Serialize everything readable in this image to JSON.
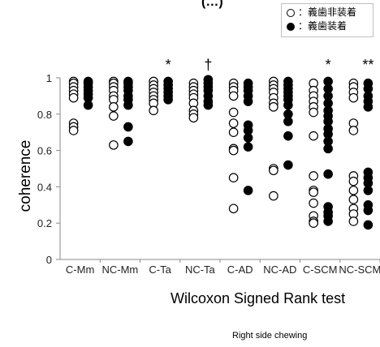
{
  "header_partial": "(…)",
  "legend": {
    "removed_label": "：義歯非装着",
    "worn_label": "：義歯装着"
  },
  "x_title": "Wilcoxon Signed Rank test",
  "footer": "Right side chewing",
  "chart_data": {
    "type": "scatter",
    "ylabel": "coherence",
    "xlabel": "Wilcoxon Signed Rank test",
    "ylim": [
      0,
      1
    ],
    "yticks": [
      0,
      0.2,
      0.4,
      0.6,
      0.8,
      1
    ],
    "categories": [
      "C-Mm",
      "NC-Mm",
      "C-Ta",
      "NC-Ta",
      "C-AD",
      "NC-AD",
      "C-SCM",
      "NC-SCM"
    ],
    "significance": [
      "",
      "",
      "*",
      "†",
      "",
      "",
      "*",
      "**"
    ],
    "series": [
      {
        "name": "義歯非装着",
        "marker": "open",
        "values": [
          [
            0.98,
            0.97,
            0.95,
            0.93,
            0.91,
            0.89,
            0.75,
            0.73,
            0.71
          ],
          [
            0.98,
            0.97,
            0.95,
            0.93,
            0.9,
            0.88,
            0.84,
            0.79,
            0.63
          ],
          [
            0.98,
            0.96,
            0.94,
            0.92,
            0.9,
            0.88,
            0.86,
            0.82
          ],
          [
            0.97,
            0.95,
            0.93,
            0.91,
            0.89,
            0.86,
            0.82,
            0.8,
            0.78
          ],
          [
            0.97,
            0.95,
            0.93,
            0.9,
            0.81,
            0.75,
            0.7,
            0.61,
            0.6,
            0.45,
            0.28
          ],
          [
            0.98,
            0.96,
            0.94,
            0.92,
            0.89,
            0.86,
            0.84,
            0.5,
            0.49,
            0.35
          ],
          [
            0.97,
            0.93,
            0.9,
            0.87,
            0.84,
            0.81,
            0.68,
            0.46,
            0.38,
            0.37,
            0.31,
            0.24,
            0.21,
            0.2
          ],
          [
            0.97,
            0.95,
            0.92,
            0.89,
            0.75,
            0.71,
            0.46,
            0.43,
            0.38,
            0.33,
            0.28,
            0.25,
            0.21
          ]
        ]
      },
      {
        "name": "義歯装着",
        "marker": "filled",
        "values": [
          [
            0.98,
            0.97,
            0.95,
            0.93,
            0.91,
            0.89,
            0.85
          ],
          [
            0.98,
            0.97,
            0.95,
            0.93,
            0.9,
            0.88,
            0.85,
            0.73,
            0.65
          ],
          [
            0.98,
            0.96,
            0.94,
            0.92,
            0.9,
            0.88
          ],
          [
            0.99,
            0.97,
            0.95,
            0.93,
            0.9,
            0.87,
            0.85
          ],
          [
            0.97,
            0.95,
            0.93,
            0.9,
            0.87,
            0.74,
            0.71,
            0.67,
            0.62,
            0.38
          ],
          [
            0.98,
            0.96,
            0.94,
            0.92,
            0.9,
            0.88,
            0.85,
            0.8,
            0.76,
            0.68,
            0.52
          ],
          [
            0.98,
            0.94,
            0.9,
            0.86,
            0.82,
            0.79,
            0.76,
            0.72,
            0.69,
            0.65,
            0.61,
            0.47,
            0.29,
            0.26,
            0.24,
            0.21
          ],
          [
            0.97,
            0.94,
            0.9,
            0.87,
            0.84,
            0.48,
            0.45,
            0.42,
            0.38,
            0.3,
            0.27,
            0.19
          ]
        ]
      }
    ]
  }
}
